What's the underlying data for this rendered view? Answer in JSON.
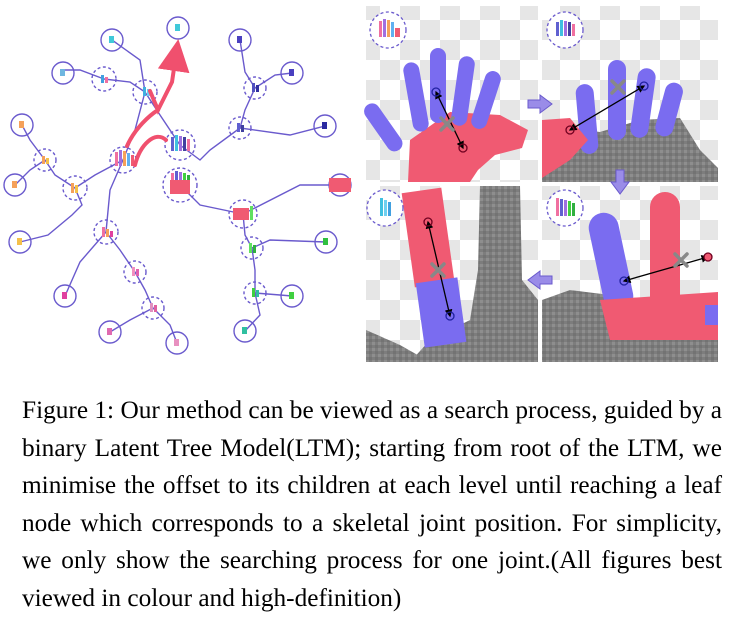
{
  "figure": {
    "label": "Figure 1:",
    "caption": "Our method can be viewed as a search process, guided by a binary Latent Tree Model(LTM); starting from root of the LTM, we minimise the offset to its children at each level until reaching a leaf node which corresponds to a skeletal joint position. For simplicity, we only show the searching process for one joint.(All figures best viewed in colour and high-definition)"
  },
  "colors": {
    "tree_purple": "#6a5acd",
    "path_red": "#f0506e",
    "finger_blue": "#7a6cf0",
    "hand_red": "#f05a72",
    "grey_hand": "#8a8a8a"
  }
}
